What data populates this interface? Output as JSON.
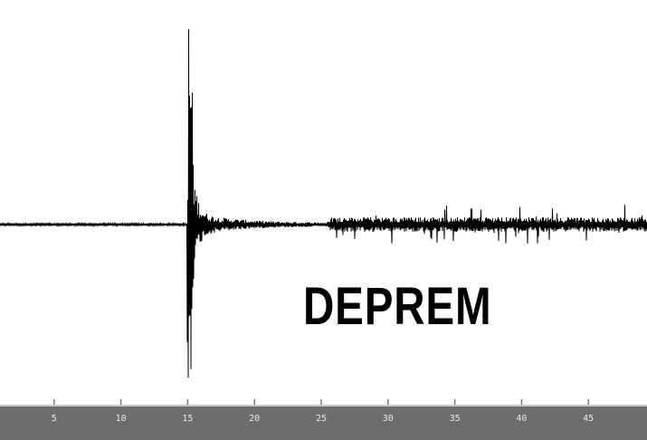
{
  "chart_data": {
    "type": "line",
    "title": "DEPREM",
    "xlabel": "",
    "ylabel": "",
    "xticks": [
      5,
      10,
      15,
      20,
      25,
      30,
      35,
      40,
      45
    ],
    "xlim": [
      0,
      49.4
    ],
    "grid": false,
    "event_onset": 15,
    "colors": {
      "trace": "#000000",
      "axis_bar": "#6d6d6d",
      "tick_label": "#e8e8e8",
      "background": "#ffffff"
    }
  }
}
